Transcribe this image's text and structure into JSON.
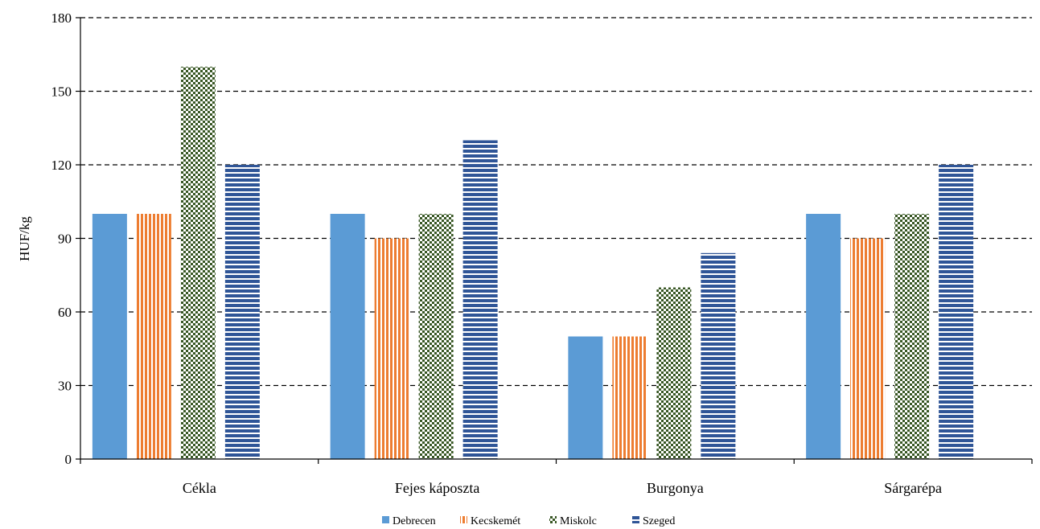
{
  "chart_data": {
    "type": "bar",
    "title": "",
    "xlabel": "",
    "ylabel": "HUF/kg",
    "ylim": [
      0,
      180
    ],
    "yticks": [
      0,
      30,
      60,
      90,
      120,
      150,
      180
    ],
    "grid": "horizontal dashed",
    "legend_position": "bottom",
    "categories": [
      "Cékla",
      "Fejes káposzta",
      "Burgonya",
      "Sárgarépa"
    ],
    "series": [
      {
        "name": "Debrecen",
        "values": [
          100,
          100,
          50,
          100
        ],
        "color": "#5b9bd5",
        "pattern": "solid"
      },
      {
        "name": "Kecskemét",
        "values": [
          100,
          90,
          50,
          90
        ],
        "color": "#ed7d31",
        "pattern": "vertical-stripes"
      },
      {
        "name": "Miskolc",
        "values": [
          160,
          100,
          70,
          100
        ],
        "color": "#375623",
        "pattern": "checker"
      },
      {
        "name": "Szeged",
        "values": [
          120,
          130,
          84,
          120
        ],
        "color": "#2f5597",
        "pattern": "horizontal-stripes"
      }
    ]
  }
}
